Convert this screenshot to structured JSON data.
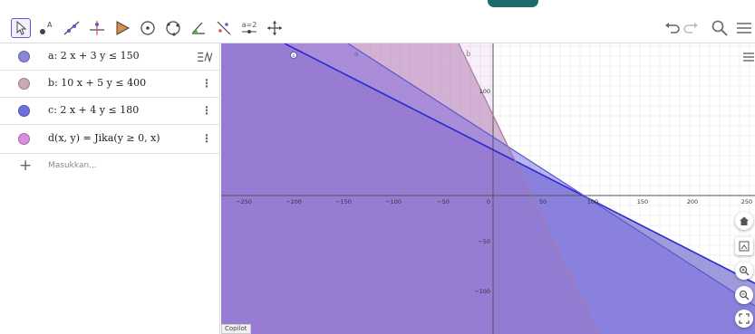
{
  "toolbar": {
    "tools": [
      {
        "name": "move-tool",
        "icon": "arrow-pointer-icon"
      },
      {
        "name": "point-tool",
        "icon": "point-icon",
        "label": "A"
      },
      {
        "name": "line-tool",
        "icon": "line-icon"
      },
      {
        "name": "perpendicular-line-tool",
        "icon": "perpendicular-icon"
      },
      {
        "name": "polygon-tool",
        "icon": "polygon-icon"
      },
      {
        "name": "circle-center-tool",
        "icon": "circle-center-icon"
      },
      {
        "name": "circle-three-points-tool",
        "icon": "circle-three-points-icon"
      },
      {
        "name": "angle-tool",
        "icon": "angle-icon"
      },
      {
        "name": "reflect-tool",
        "icon": "reflect-icon"
      },
      {
        "name": "slider-tool",
        "icon": "slider-icon",
        "label": "a=2"
      },
      {
        "name": "move-graphics-tool",
        "icon": "move-graphics-icon"
      }
    ]
  },
  "algebra": {
    "items": [
      {
        "label": "a: 2 x + 3 y ≤ 150",
        "color": "#8b86d6"
      },
      {
        "label": "b: 10 x + 5 y ≤ 400",
        "color": "#cca7b8"
      },
      {
        "label": "c: 2 x + 4 y ≤ 180",
        "color": "#6d6fdb"
      },
      {
        "label": "d(x, y)  =  Jika(y ≥ 0, x)",
        "color": "#d98de0"
      }
    ],
    "input_placeholder": "Masukkan..."
  },
  "graphics": {
    "x_ticks": [
      "−250",
      "−200",
      "−150",
      "−100",
      "−50",
      "0",
      "50",
      "100",
      "150",
      "200",
      "250"
    ],
    "y_ticks": [
      "100",
      "−50",
      "−100"
    ],
    "object_labels": [
      "c",
      "a",
      "b"
    ],
    "copilot_label": "Copilot"
  },
  "colors": {
    "accent": "#6557d2",
    "region_a": "#8b86d6",
    "region_b": "#c99ab0",
    "region_c": "#7e74e3",
    "line": "#2a2ad0",
    "top_pill": "#1f6b6b"
  }
}
